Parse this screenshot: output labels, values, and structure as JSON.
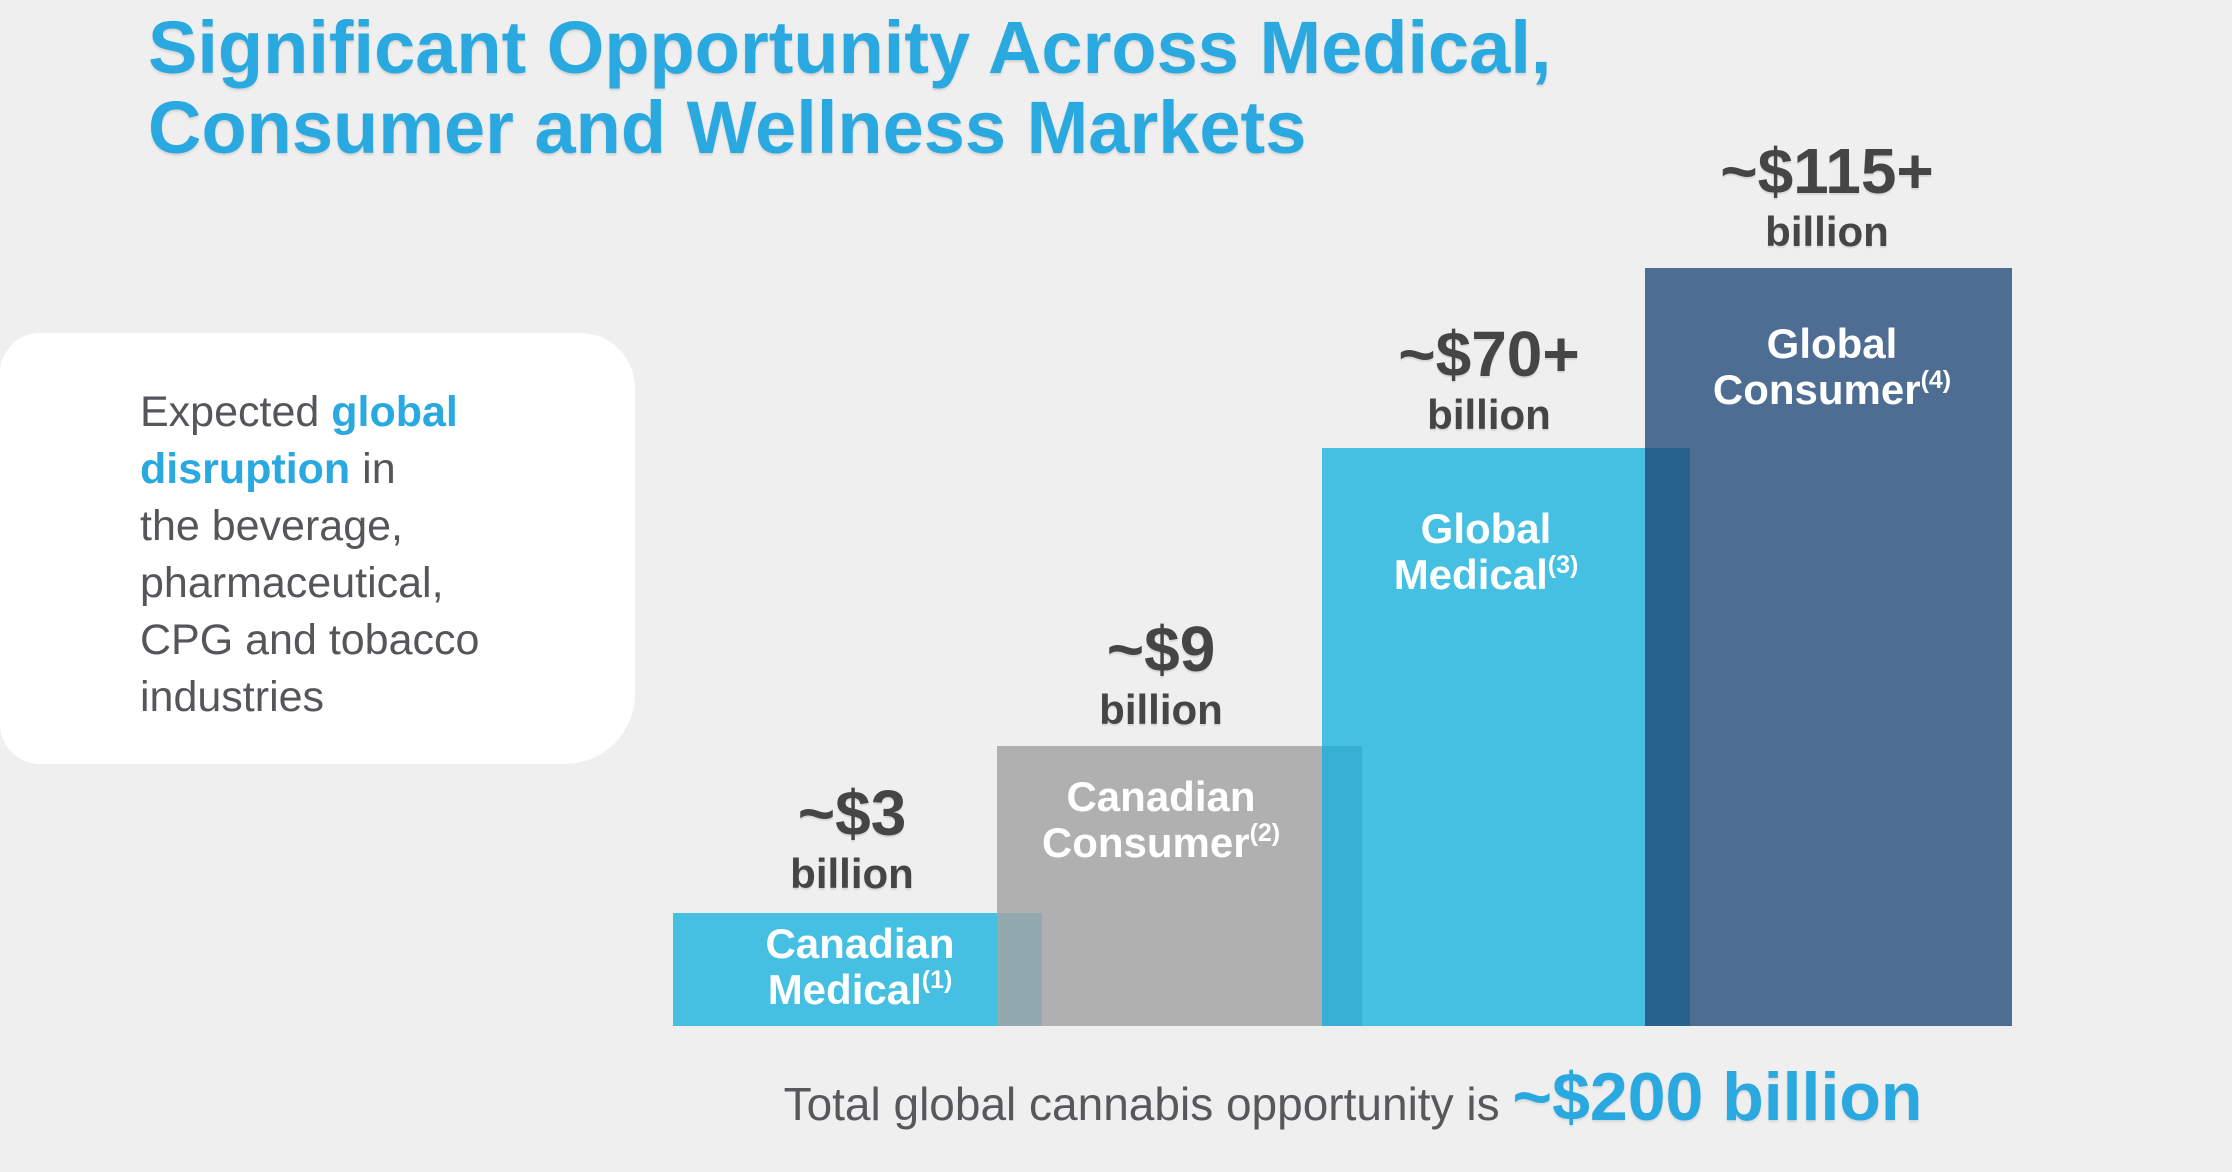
{
  "title": {
    "line1": "Significant Opportunity Across Medical,",
    "line2": "Consumer and Wellness Markets"
  },
  "callout": {
    "line1_normal": "Expected ",
    "line1_bold": "global",
    "line2_bold": "disruption",
    "line2_normal": " in",
    "line3": "the beverage,",
    "line4": "pharmaceutical,",
    "line5": "CPG and tobacco",
    "line6": "industries"
  },
  "chart_data": {
    "type": "bar",
    "title": "",
    "xlabel": "",
    "ylabel": "",
    "unit": "billion USD",
    "axes_hidden": true,
    "grid": false,
    "legend": false,
    "categories": [
      "Canadian Medical",
      "Canadian Consumer",
      "Global Medical",
      "Global Consumer"
    ],
    "values": [
      3,
      9,
      70,
      115
    ],
    "bars": [
      {
        "value_label": "~$3",
        "unit_label": "billion",
        "name_line1": "Canadian",
        "name_line2": "Medical",
        "footnote": "(1)",
        "color": "#45c0e2",
        "value_billions": 3
      },
      {
        "value_label": "~$9",
        "unit_label": "billion",
        "name_line1": "Canadian",
        "name_line2": "Consumer",
        "footnote": "(2)",
        "color": "#b0b0b0",
        "value_billions": 9
      },
      {
        "value_label": "~$70+",
        "unit_label": "billion",
        "name_line1": "Global",
        "name_line2": "Medical",
        "footnote": "(3)",
        "color": "#45c0e2",
        "value_billions": 70
      },
      {
        "value_label": "~$115+",
        "unit_label": "billion",
        "name_line1": "Global",
        "name_line2": "Consumer",
        "footnote": "(4)",
        "color": "#4e6d92",
        "value_billions": 115
      }
    ],
    "overlap_colors": [
      "#93a9b0",
      "#38b0d6",
      "#27628f"
    ]
  },
  "footer": {
    "prefix": "Total global cannabis opportunity is ",
    "highlight": "~$200 billion"
  },
  "colors": {
    "accent_blue": "#29a9e0",
    "dark_value_text": "#454545",
    "body_text": "#55565a",
    "background": "#efefef",
    "card": "#ffffff",
    "cyan_bar": "#45c0e2",
    "gray_bar": "#b0b0b0",
    "navy_bar": "#4e6d92"
  }
}
